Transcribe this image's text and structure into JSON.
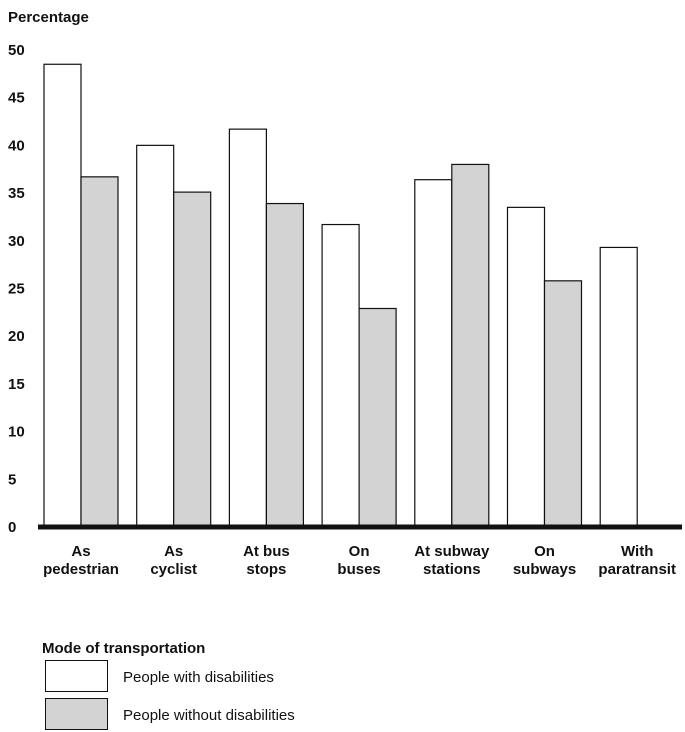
{
  "chart_data": {
    "type": "bar",
    "ylabel": "Percentage",
    "xlabel": "Mode of transportation",
    "ylim": [
      0,
      50
    ],
    "yticks": [
      0,
      5,
      10,
      15,
      20,
      25,
      30,
      35,
      40,
      45,
      50
    ],
    "categories": [
      [
        "As",
        "pedestrian"
      ],
      [
        "As",
        "cyclist"
      ],
      [
        "At bus",
        "stops"
      ],
      [
        "On",
        "buses"
      ],
      [
        "At subway",
        "stations"
      ],
      [
        "On",
        "subways"
      ],
      [
        "With",
        "paratransit"
      ]
    ],
    "series": [
      {
        "name": "People with disabilities",
        "color": "#ffffff",
        "values": [
          48.4,
          39.9,
          41.6,
          31.6,
          36.3,
          33.4,
          29.2
        ]
      },
      {
        "name": "People without disabilities",
        "color": "#d3d3d3",
        "values": [
          36.6,
          35.0,
          33.8,
          22.8,
          37.9,
          25.7,
          null
        ]
      }
    ],
    "grid": false,
    "legend_position": "bottom-left"
  }
}
